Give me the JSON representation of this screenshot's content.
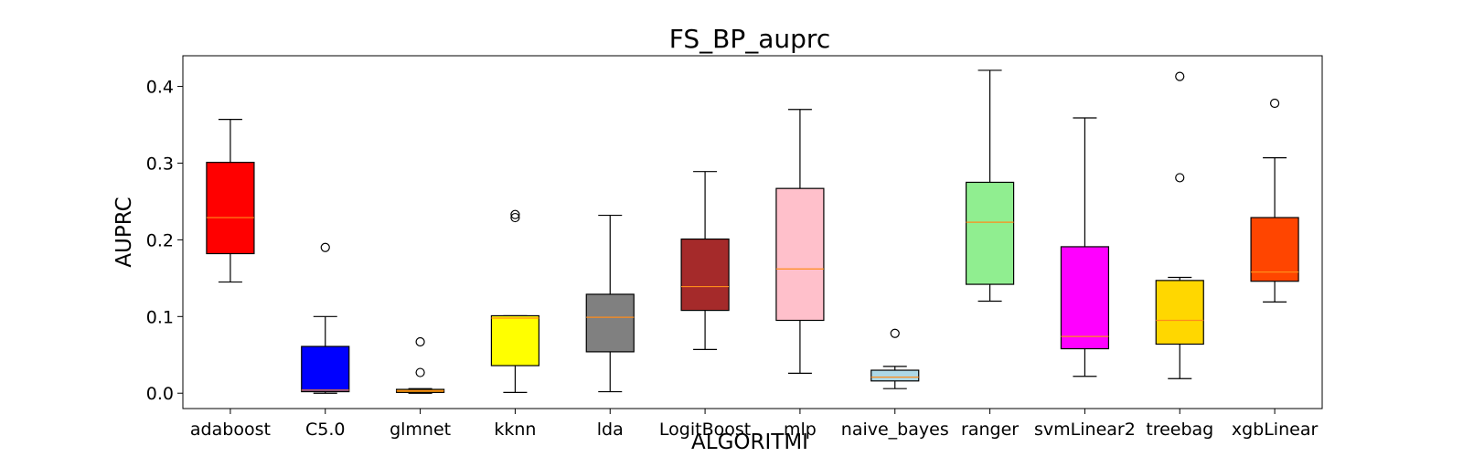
{
  "chart_data": {
    "type": "box",
    "title": "FS_BP_auprc",
    "xlabel": "ALGORITMI",
    "ylabel": "AUPRC",
    "ylim": [
      -0.02,
      0.44
    ],
    "yticks": [
      0.0,
      0.1,
      0.2,
      0.3,
      0.4
    ],
    "ytick_labels": [
      "0.0",
      "0.1",
      "0.2",
      "0.3",
      "0.4"
    ],
    "grid": false,
    "legend": "none",
    "median_color": "#ff8c1a",
    "categories": [
      "adaboost",
      "C5.0",
      "glmnet",
      "kknn",
      "lda",
      "LogitBoost",
      "mlp",
      "naive_bayes",
      "ranger",
      "svmLinear2",
      "treebag",
      "xgbLinear"
    ],
    "boxes": [
      {
        "name": "adaboost",
        "color": "#ff0000",
        "whisker_low": 0.145,
        "q1": 0.182,
        "median": 0.229,
        "q3": 0.301,
        "whisker_high": 0.357,
        "outliers": []
      },
      {
        "name": "C5.0",
        "color": "#0000ff",
        "whisker_low": 0.0,
        "q1": 0.002,
        "median": 0.004,
        "q3": 0.061,
        "whisker_high": 0.1,
        "outliers": [
          0.19
        ]
      },
      {
        "name": "glmnet",
        "color": "#ffa500",
        "whisker_low": 0.0,
        "q1": 0.001,
        "median": 0.003,
        "q3": 0.005,
        "whisker_high": 0.006,
        "outliers": [
          0.067,
          0.027
        ]
      },
      {
        "name": "kknn",
        "color": "#ffff00",
        "whisker_low": 0.001,
        "q1": 0.036,
        "median": 0.098,
        "q3": 0.101,
        "whisker_high": 0.101,
        "outliers": [
          0.233,
          0.229
        ]
      },
      {
        "name": "lda",
        "color": "#808080",
        "whisker_low": 0.002,
        "q1": 0.054,
        "median": 0.099,
        "q3": 0.129,
        "whisker_high": 0.232,
        "outliers": []
      },
      {
        "name": "LogitBoost",
        "color": "#a52a2a",
        "whisker_low": 0.057,
        "q1": 0.108,
        "median": 0.139,
        "q3": 0.201,
        "whisker_high": 0.289,
        "outliers": []
      },
      {
        "name": "mlp",
        "color": "#ffc0cb",
        "whisker_low": 0.026,
        "q1": 0.095,
        "median": 0.162,
        "q3": 0.267,
        "whisker_high": 0.37,
        "outliers": []
      },
      {
        "name": "naive_bayes",
        "color": "#add8e6",
        "whisker_low": 0.006,
        "q1": 0.016,
        "median": 0.021,
        "q3": 0.03,
        "whisker_high": 0.035,
        "outliers": [
          0.078
        ]
      },
      {
        "name": "ranger",
        "color": "#90ee90",
        "whisker_low": 0.12,
        "q1": 0.142,
        "median": 0.223,
        "q3": 0.275,
        "whisker_high": 0.421,
        "outliers": []
      },
      {
        "name": "svmLinear2",
        "color": "#ff00ff",
        "whisker_low": 0.022,
        "q1": 0.058,
        "median": 0.074,
        "q3": 0.191,
        "whisker_high": 0.359,
        "outliers": []
      },
      {
        "name": "treebag",
        "color": "#ffd700",
        "whisker_low": 0.019,
        "q1": 0.064,
        "median": 0.095,
        "q3": 0.147,
        "whisker_high": 0.151,
        "outliers": [
          0.413,
          0.281
        ]
      },
      {
        "name": "xgbLinear",
        "color": "#ff4500",
        "whisker_low": 0.119,
        "q1": 0.146,
        "median": 0.158,
        "q3": 0.229,
        "whisker_high": 0.307,
        "outliers": [
          0.378
        ]
      }
    ]
  }
}
